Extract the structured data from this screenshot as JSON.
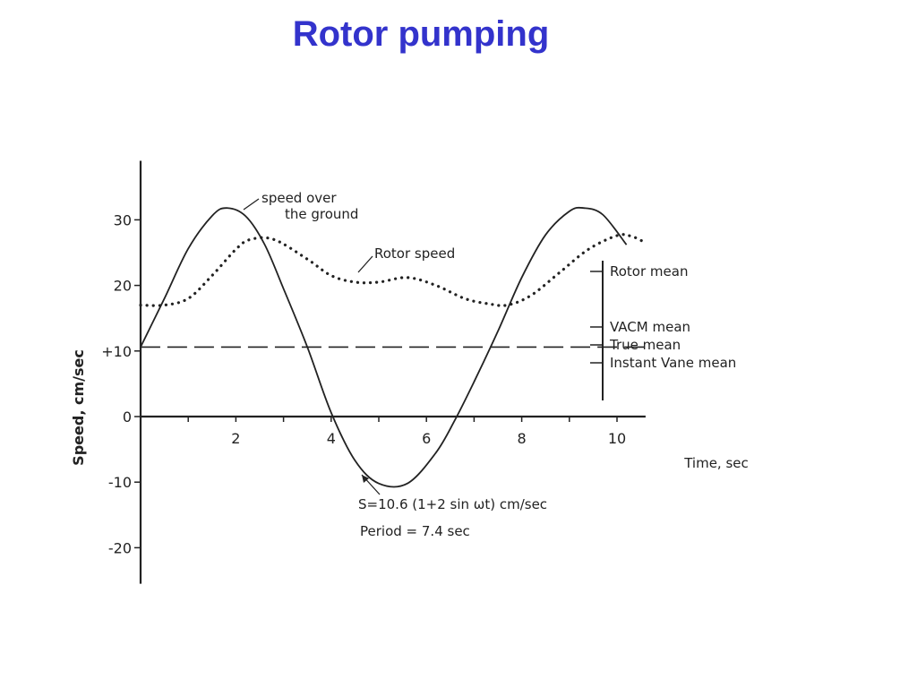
{
  "slide": {
    "title": "Rotor pumping"
  },
  "chart_data": {
    "type": "line",
    "xlabel": "Time, sec",
    "ylabel": "Speed,  cm/sec",
    "xlim": [
      0,
      10.6
    ],
    "ylim": [
      -25,
      40
    ],
    "x_ticks": [
      {
        "value": 2,
        "label": "2"
      },
      {
        "value": 4,
        "label": "4"
      },
      {
        "value": 6,
        "label": "6"
      },
      {
        "value": 8,
        "label": "8"
      },
      {
        "value": 10,
        "label": "10"
      }
    ],
    "y_ticks": [
      {
        "value": 30,
        "label": "30"
      },
      {
        "value": 20,
        "label": "20"
      },
      {
        "value": 10,
        "label": "+10"
      },
      {
        "value": 0,
        "label": "0"
      },
      {
        "value": -10,
        "label": "-10"
      },
      {
        "value": -20,
        "label": "-20"
      }
    ],
    "series": [
      {
        "style": "solid",
        "x": [
          0,
          0.5,
          1,
          1.5,
          1.8,
          2.2,
          2.6,
          3,
          3.5,
          4,
          4.5,
          5,
          5.6,
          6.2,
          6.6,
          7,
          7.5,
          8,
          8.5,
          9,
          9.3,
          9.7,
          10.2
        ],
        "y": [
          10.6,
          18,
          25.6,
          30.6,
          31.8,
          30.6,
          26.3,
          19.5,
          10.6,
          0.6,
          -6.7,
          -10.2,
          -10.2,
          -5.5,
          -0.5,
          5.3,
          13,
          21.2,
          27.7,
          31.3,
          31.8,
          30.8,
          26.2
        ]
      },
      {
        "style": "dotted",
        "x": [
          0,
          0.5,
          1,
          1.5,
          2,
          2.3,
          2.8,
          3.5,
          4,
          4.5,
          5,
          5.6,
          6.2,
          6.8,
          7.3,
          7.7,
          8.2,
          8.8,
          9.4,
          10,
          10.3,
          10.6
        ],
        "y": [
          17,
          17,
          18,
          21.5,
          25.5,
          27,
          27,
          24,
          21.5,
          20.5,
          20.5,
          21.2,
          20,
          18,
          17.2,
          17,
          18.5,
          22,
          25.5,
          27.6,
          27.5,
          26.5
        ]
      },
      {
        "style": "dashed",
        "x": [
          0,
          10.6
        ],
        "y": [
          10.6,
          10.6
        ]
      }
    ],
    "annotations": {
      "speed_ground": [
        "speed over",
        "the ground"
      ],
      "rotor_speed": "Rotor speed",
      "formula": "S=10.6 (1+2 sin ωt) cm/sec",
      "period": "Period = 7.4  sec",
      "rotor_mean": "Rotor mean",
      "vacm_mean": "VACM mean",
      "true_mean": "True mean",
      "instant_vane_mean": "Instant Vane mean"
    }
  }
}
